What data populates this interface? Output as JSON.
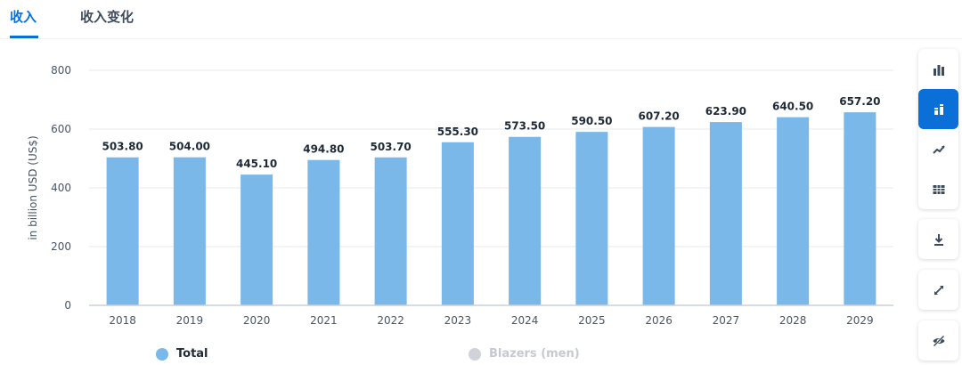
{
  "tabs": [
    {
      "label": "收入"
    },
    {
      "label": "收入变化"
    }
  ],
  "colors": {
    "accent": "#0a6fd6",
    "bar": "#7ab8ea",
    "legend_inactive": "#d0d4da"
  },
  "chart_data": {
    "type": "bar",
    "categories": [
      "2018",
      "2019",
      "2020",
      "2021",
      "2022",
      "2023",
      "2024",
      "2025",
      "2026",
      "2027",
      "2028",
      "2029"
    ],
    "series": [
      {
        "name": "Total",
        "values": [
          503.8,
          504.0,
          445.1,
          494.8,
          503.7,
          555.3,
          573.5,
          590.5,
          607.2,
          623.9,
          640.5,
          657.2
        ]
      }
    ],
    "data_labels": [
      "503.80",
      "504.00",
      "445.10",
      "494.80",
      "503.70",
      "555.30",
      "573.50",
      "590.50",
      "607.20",
      "623.90",
      "640.50",
      "657.20"
    ],
    "ylabel": "in billion USD (US$)",
    "ylim": [
      0,
      800
    ],
    "yticks": [
      "0",
      "200",
      "400",
      "600",
      "800"
    ],
    "grid": true,
    "legend": [
      {
        "label": "Total",
        "active": true
      },
      {
        "label": "Blazers (men)",
        "active": false
      }
    ],
    "legend_position": "bottom"
  },
  "toolbar": {
    "icons": [
      "bar-chart-icon",
      "stacked-bar-icon",
      "line-chart-icon",
      "table-icon",
      "download-icon",
      "fullscreen-icon",
      "hide-icon"
    ]
  }
}
